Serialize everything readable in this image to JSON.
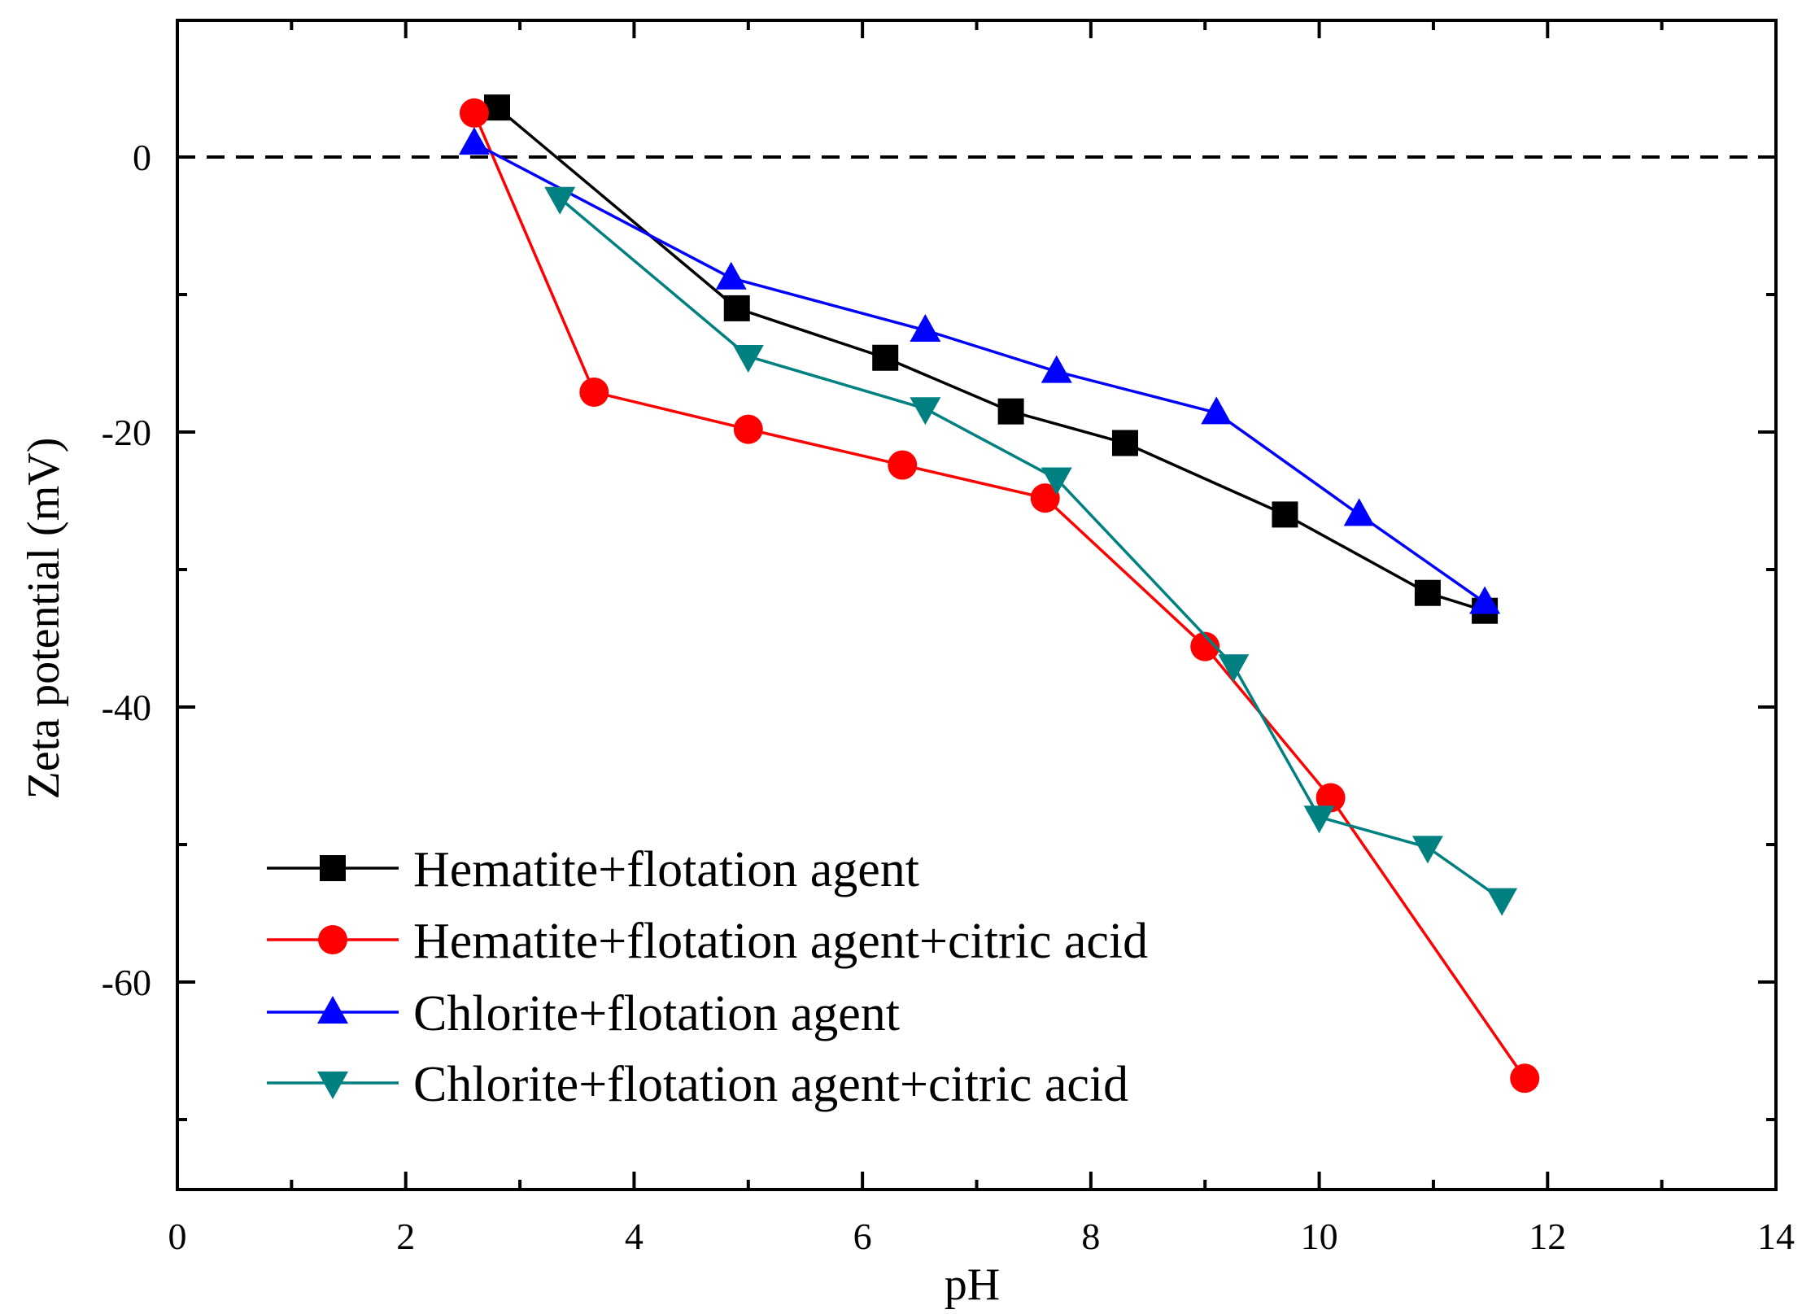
{
  "chart_data": {
    "type": "line",
    "title": "",
    "xlabel": "pH",
    "ylabel": "Zeta potential (mV)",
    "xlim": [
      0,
      14
    ],
    "ylim": [
      -75,
      10
    ],
    "xticks": [
      0,
      2,
      4,
      6,
      8,
      10,
      12,
      14
    ],
    "xtick_labels": [
      "0",
      "2",
      "4",
      "6",
      "8",
      "10",
      "12",
      "14"
    ],
    "yticks": [
      0,
      -20,
      -40,
      -60
    ],
    "ytick_labels": [
      "0",
      "-20",
      "-40",
      "-60"
    ],
    "reference_line": {
      "y": 0,
      "style": "dashed"
    },
    "grid": false,
    "legend_position": "bottom-left",
    "series": [
      {
        "name": "Hematite+flotation agent",
        "color": "#000000",
        "marker": "square",
        "x": [
          2.8,
          4.9,
          6.2,
          7.3,
          8.3,
          9.7,
          10.95,
          11.45
        ],
        "y": [
          3.6,
          -11.0,
          -14.6,
          -18.5,
          -20.8,
          -26.0,
          -31.7,
          -33.0
        ]
      },
      {
        "name": "Hematite+flotation agent+citric acid",
        "color": "#ff0000",
        "marker": "circle",
        "x": [
          2.6,
          3.65,
          5.0,
          6.35,
          7.6,
          9.0,
          10.1,
          11.8
        ],
        "y": [
          3.2,
          -17.1,
          -19.8,
          -22.4,
          -24.8,
          -35.6,
          -46.6,
          -67.0
        ]
      },
      {
        "name": "Chlorite+flotation agent",
        "color": "#0000ff",
        "marker": "triangle-up",
        "x": [
          2.6,
          4.85,
          6.55,
          7.7,
          9.1,
          10.35,
          11.45
        ],
        "y": [
          1.0,
          -8.8,
          -12.6,
          -15.6,
          -18.6,
          -26.0,
          -32.4
        ]
      },
      {
        "name": "Chlorite+flotation agent+citric acid",
        "color": "#008080",
        "marker": "triangle-down",
        "x": [
          3.35,
          5.0,
          6.55,
          7.7,
          9.25,
          10.0,
          10.95,
          11.6
        ],
        "y": [
          -3.0,
          -14.5,
          -18.3,
          -23.4,
          -37.0,
          -48.0,
          -50.2,
          -54.0
        ]
      }
    ]
  }
}
